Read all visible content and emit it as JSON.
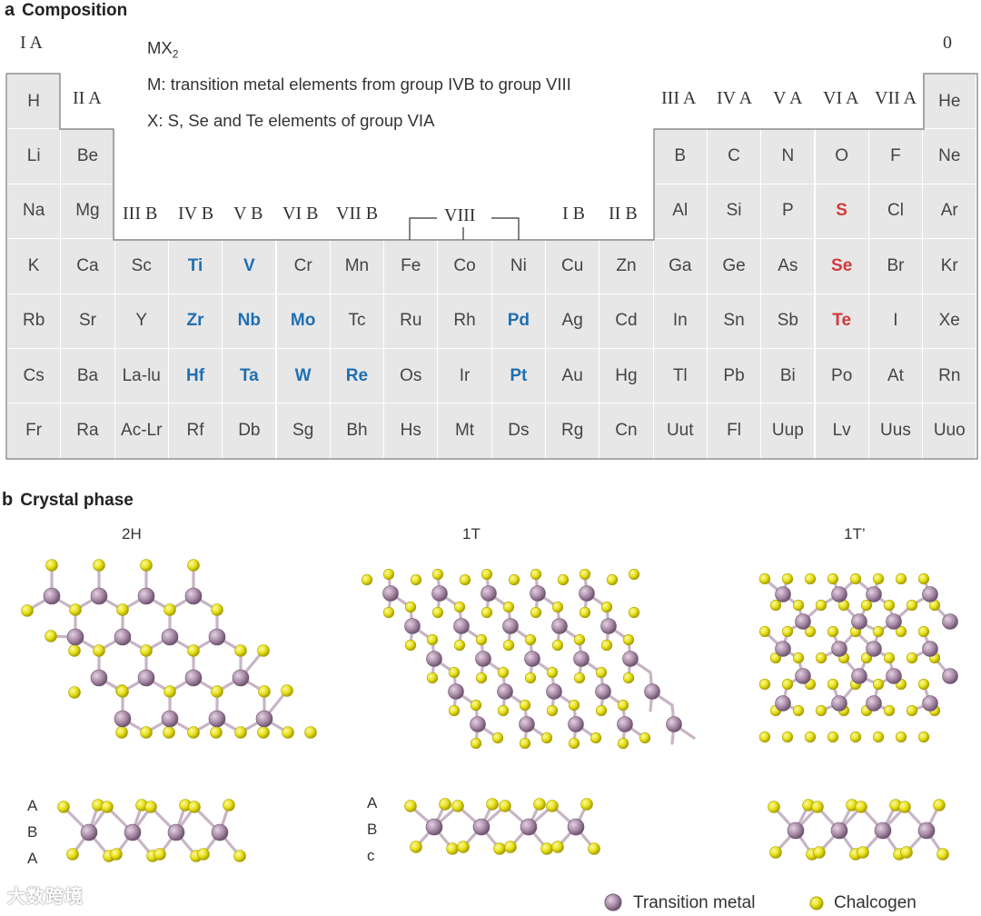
{
  "panel_a": {
    "letter": "a",
    "title": "Composition",
    "formula_base": "MX",
    "formula_sub": "2",
    "line_m": "M: transition metal elements from group IVB to group VIII",
    "line_x": "X: S, Se and Te elements of group VIA",
    "group_labels": {
      "IA": "I A",
      "IIA": "II A",
      "IIIB": "III B",
      "IVB": "IV B",
      "VB": "V B",
      "VIB": "VI B",
      "VIIB": "VII B",
      "VIII": "VIII",
      "IB": "I B",
      "IIB": "II B",
      "IIIA": "III A",
      "IVA": "IV A",
      "VA": "V A",
      "VIA": "VI A",
      "VIIA": "VII A",
      "zero": "0"
    },
    "rows": [
      [
        "H",
        "",
        "",
        "",
        "",
        "",
        "",
        "",
        "",
        "",
        "",
        "",
        "",
        "",
        "",
        "",
        "",
        "He"
      ],
      [
        "Li",
        "Be",
        "",
        "",
        "",
        "",
        "",
        "",
        "",
        "",
        "",
        "",
        "B",
        "C",
        "N",
        "O",
        "F",
        "Ne"
      ],
      [
        "Na",
        "Mg",
        "",
        "",
        "",
        "",
        "",
        "",
        "",
        "",
        "",
        "",
        "Al",
        "Si",
        "P",
        "S",
        "Cl",
        "Ar"
      ],
      [
        "K",
        "Ca",
        "Sc",
        "Ti",
        "V",
        "Cr",
        "Mn",
        "Fe",
        "Co",
        "Ni",
        "Cu",
        "Zn",
        "Ga",
        "Ge",
        "As",
        "Se",
        "Br",
        "Kr"
      ],
      [
        "Rb",
        "Sr",
        "Y",
        "Zr",
        "Nb",
        "Mo",
        "Tc",
        "Ru",
        "Rh",
        "Pd",
        "Ag",
        "Cd",
        "In",
        "Sn",
        "Sb",
        "Te",
        "I",
        "Xe"
      ],
      [
        "Cs",
        "Ba",
        "La-lu",
        "Hf",
        "Ta",
        "W",
        "Re",
        "Os",
        "Ir",
        "Pt",
        "Au",
        "Hg",
        "Tl",
        "Pb",
        "Bi",
        "Po",
        "At",
        "Rn"
      ],
      [
        "Fr",
        "Ra",
        "Ac-Lr",
        "Rf",
        "Db",
        "Sg",
        "Bh",
        "Hs",
        "Mt",
        "Ds",
        "Rg",
        "Cn",
        "Uut",
        "Fl",
        "Uup",
        "Lv",
        "Uus",
        "Uuo"
      ]
    ],
    "highlight_metals": [
      "Ti",
      "V",
      "Zr",
      "Nb",
      "Mo",
      "Pd",
      "Hf",
      "Ta",
      "W",
      "Re",
      "Pt"
    ],
    "highlight_chalcogens": [
      "S",
      "Se",
      "Te"
    ],
    "colors": {
      "cell_bg": "#e8e7e8",
      "metal": "#1f6fb0",
      "chalcogen": "#d23a3a"
    }
  },
  "panel_b": {
    "letter": "b",
    "title": "Crystal phase",
    "phases": [
      {
        "label": "2H",
        "stack": [
          "A",
          "B",
          "A"
        ]
      },
      {
        "label": "1T",
        "stack": [
          "A",
          "B",
          "c"
        ]
      },
      {
        "label": "1T’",
        "stack": []
      }
    ],
    "legend": {
      "metal": "Transition metal",
      "chalcogen": "Chalcogen"
    },
    "colors": {
      "metal": "#a98aa8",
      "metal_dark": "#7c5f7c",
      "chalcogen": "#e9e219",
      "chalcogen_dark": "#b8ae00",
      "bond": "#c8b7c6"
    }
  },
  "watermark": "大数跨境"
}
